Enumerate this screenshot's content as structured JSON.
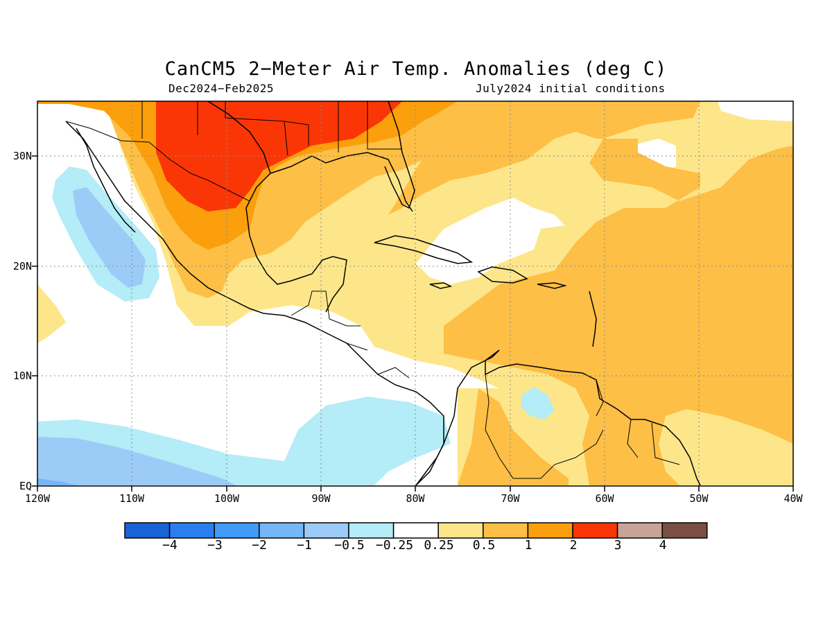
{
  "title": "CanCM5 2−Meter Air Temp. Anomalies (deg C)",
  "subtitle_left": "Dec2024−Feb2025",
  "subtitle_right": "July2024 initial conditions",
  "lat_ticks": [
    "30N",
    "20N",
    "10N",
    "EQ"
  ],
  "lon_ticks": [
    "120W",
    "110W",
    "100W",
    "90W",
    "80W",
    "70W",
    "60W",
    "50W",
    "40W"
  ],
  "legend": {
    "labels": [
      "−4",
      "−3",
      "−2",
      "−1",
      "−0.5",
      "−0.25",
      "0.25",
      "0.5",
      "1",
      "2",
      "3",
      "4"
    ],
    "colors": [
      "#1a63d6",
      "#2a7ff0",
      "#3f9bf6",
      "#74b6f6",
      "#9ccbf8",
      "#b4ecf7",
      "#ffffff",
      "#fde68a",
      "#fdbf45",
      "#fb9f0c",
      "#fb3606",
      "#c8a398",
      "#7a4f42"
    ]
  },
  "map": {
    "extent": {
      "lon_min": -120,
      "lon_max": -40,
      "lat_min": 0,
      "lat_max": 35
    },
    "land_color": "#ffffff",
    "grid": "dotted"
  }
}
